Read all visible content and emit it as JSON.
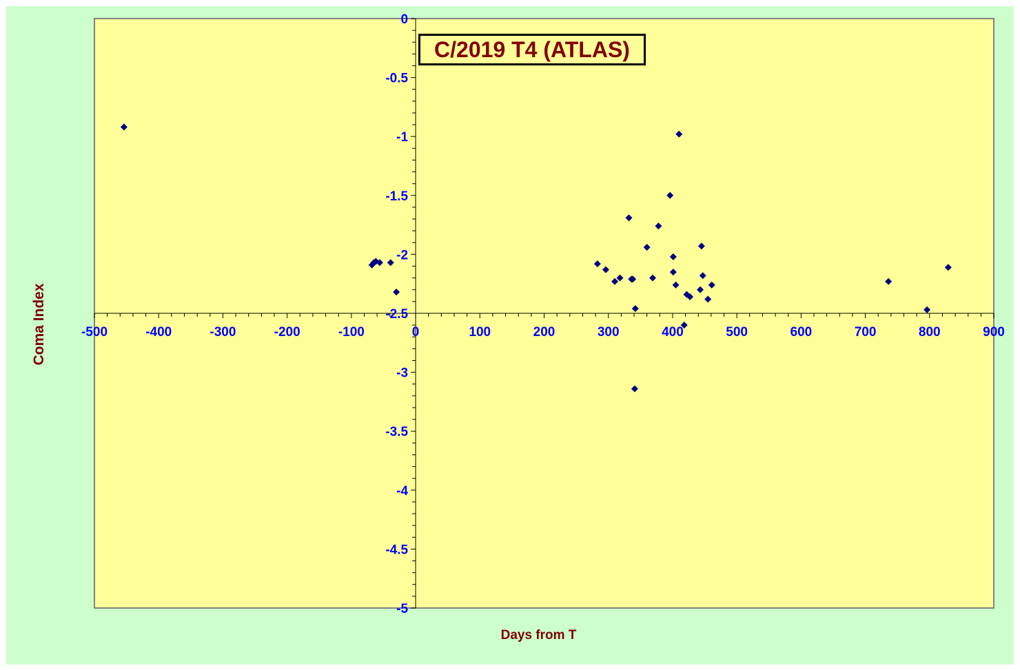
{
  "chart_data": {
    "type": "scatter",
    "title": "C/2019 T4 (ATLAS)",
    "xlabel": "Days from T",
    "ylabel": "Coma Index",
    "xlim": [
      -500,
      900
    ],
    "ylim": [
      -5,
      0
    ],
    "x_ticks": [
      -500,
      -400,
      -300,
      -200,
      -100,
      0,
      100,
      200,
      300,
      400,
      500,
      600,
      700,
      800,
      900
    ],
    "y_ticks": [
      0,
      -0.5,
      -1,
      -1.5,
      -2,
      -2.5,
      -3,
      -3.5,
      -4,
      -4.5,
      -5
    ],
    "x_tick_labels": [
      "-500",
      "-400",
      "-300",
      "-200",
      "-100",
      "0",
      "100",
      "200",
      "300",
      "400",
      "500",
      "600",
      "700",
      "800",
      "900"
    ],
    "y_tick_labels": [
      "0",
      "-0.5",
      "-1",
      "-1.5",
      "-2",
      "-2.5",
      "-3",
      "-3.5",
      "-4",
      "-4.5",
      "-5"
    ],
    "grid": false,
    "legend": "none",
    "colors": {
      "background": "#ccffcc",
      "plot_area": "#ffff99",
      "marker": "#000080",
      "tick_labels": "#0000ff",
      "titles": "#800000"
    },
    "series": [
      {
        "marker": "diamond",
        "points": [
          [
            -454,
            -0.92
          ],
          [
            -68,
            -2.09
          ],
          [
            -65,
            -2.07
          ],
          [
            -62,
            -2.06
          ],
          [
            -56,
            -2.07
          ],
          [
            -39,
            -2.07
          ],
          [
            -30,
            -2.32
          ],
          [
            283,
            -2.08
          ],
          [
            296,
            -2.13
          ],
          [
            310,
            -2.23
          ],
          [
            318,
            -2.2
          ],
          [
            332,
            -1.69
          ],
          [
            336,
            -2.21
          ],
          [
            338,
            -2.21
          ],
          [
            342,
            -2.46
          ],
          [
            341,
            -3.14
          ],
          [
            360,
            -1.94
          ],
          [
            369,
            -2.2
          ],
          [
            378,
            -1.76
          ],
          [
            396,
            -1.5
          ],
          [
            401,
            -2.02
          ],
          [
            401,
            -2.15
          ],
          [
            405,
            -2.26
          ],
          [
            410,
            -0.98
          ],
          [
            418,
            -2.6
          ],
          [
            422,
            -2.34
          ],
          [
            427,
            -2.36
          ],
          [
            443,
            -2.3
          ],
          [
            445,
            -1.93
          ],
          [
            447,
            -2.18
          ],
          [
            455,
            -2.38
          ],
          [
            461,
            -2.26
          ],
          [
            736,
            -2.23
          ],
          [
            796,
            -2.47
          ],
          [
            829,
            -2.11
          ]
        ]
      }
    ]
  }
}
